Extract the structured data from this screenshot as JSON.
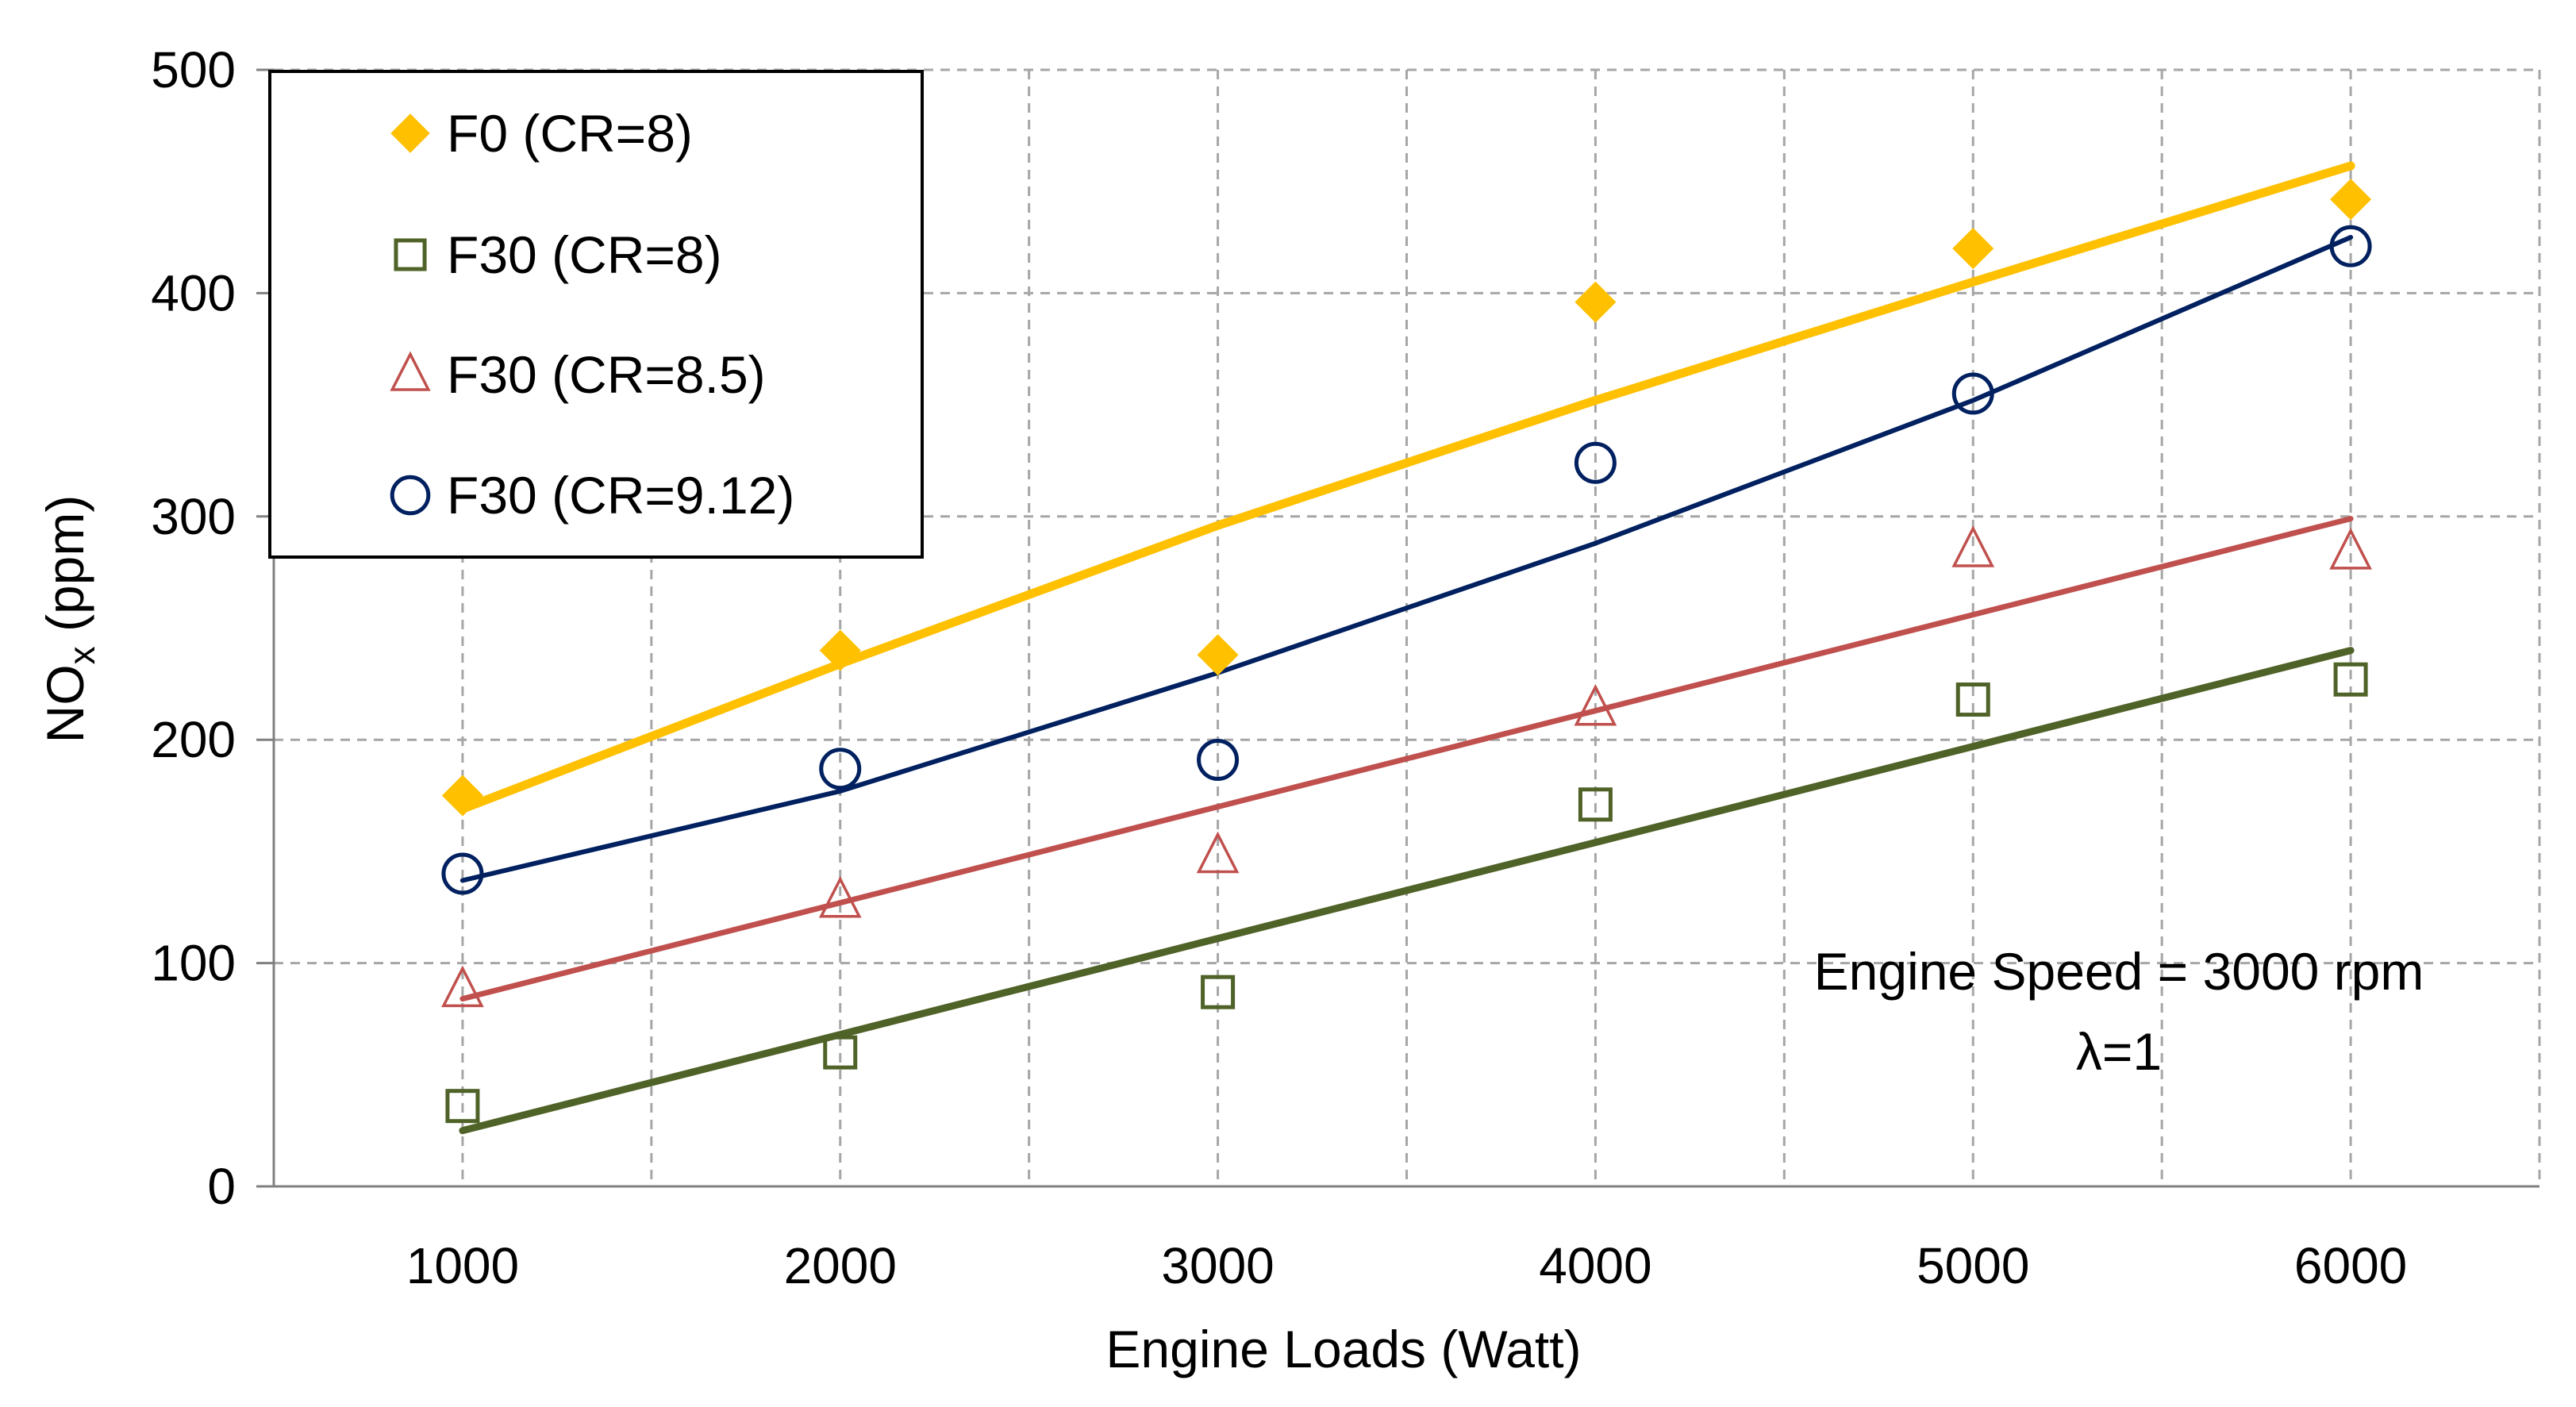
{
  "chart_data": {
    "type": "scatter",
    "xlabel": "Engine Loads (Watt)",
    "ylabel_main": "NO",
    "ylabel_sub": "x",
    "ylabel_unit": " (ppm)",
    "xlim": [
      500,
      6500
    ],
    "ylim": [
      0,
      500
    ],
    "x_ticks": [
      1000,
      2000,
      3000,
      4000,
      5000,
      6000
    ],
    "x_tick_labels": [
      "1000",
      "2000",
      "3000",
      "4000",
      "5000",
      "6000"
    ],
    "x_grid": [
      1000,
      1500,
      2000,
      2500,
      3000,
      3500,
      4000,
      4500,
      5000,
      5500,
      6000
    ],
    "y_ticks": [
      0,
      100,
      200,
      300,
      400,
      500
    ],
    "y_tick_labels": [
      "0",
      "100",
      "200",
      "300",
      "400",
      "500"
    ],
    "grid": true,
    "legend_position": "top-left",
    "annotation_lines": [
      "Engine Speed = 3000 rpm",
      "λ=1"
    ],
    "series": [
      {
        "name": "F0 (CR=8)",
        "marker": "diamond",
        "color": "#FFC000",
        "x": [
          1000,
          2000,
          3000,
          4000,
          5000,
          6000
        ],
        "y": [
          175,
          240,
          238,
          396,
          420,
          442
        ],
        "trend": [
          [
            1000,
            169
          ],
          [
            2000,
            234
          ],
          [
            3000,
            296
          ],
          [
            4000,
            352
          ],
          [
            5000,
            405
          ],
          [
            6000,
            457
          ]
        ]
      },
      {
        "name": "F30 (CR=8)",
        "marker": "square",
        "color": "#4F6228",
        "x": [
          1000,
          2000,
          3000,
          4000,
          5000,
          6000
        ],
        "y": [
          36,
          60,
          87,
          171,
          218,
          227
        ],
        "trend": [
          [
            1000,
            25
          ],
          [
            2000,
            68
          ],
          [
            3000,
            111
          ],
          [
            4000,
            154
          ],
          [
            5000,
            197
          ],
          [
            6000,
            240
          ]
        ]
      },
      {
        "name": "F30 (CR=8.5)",
        "marker": "triangle",
        "color": "#C0504D",
        "x": [
          1000,
          2000,
          3000,
          4000,
          5000,
          6000
        ],
        "y": [
          88,
          128,
          148,
          214,
          285,
          284
        ],
        "trend": [
          [
            1000,
            84
          ],
          [
            2000,
            127
          ],
          [
            3000,
            170
          ],
          [
            4000,
            213
          ],
          [
            5000,
            256
          ],
          [
            6000,
            299
          ]
        ]
      },
      {
        "name": "F30 (CR=9.12)",
        "marker": "circle",
        "color": "#002060",
        "x": [
          1000,
          2000,
          3000,
          4000,
          5000,
          6000
        ],
        "y": [
          140,
          187,
          191,
          324,
          355,
          421
        ],
        "trend": [
          [
            1000,
            137
          ],
          [
            2000,
            177
          ],
          [
            3000,
            230
          ],
          [
            4000,
            288
          ],
          [
            5000,
            352
          ],
          [
            6000,
            425
          ]
        ]
      }
    ]
  }
}
